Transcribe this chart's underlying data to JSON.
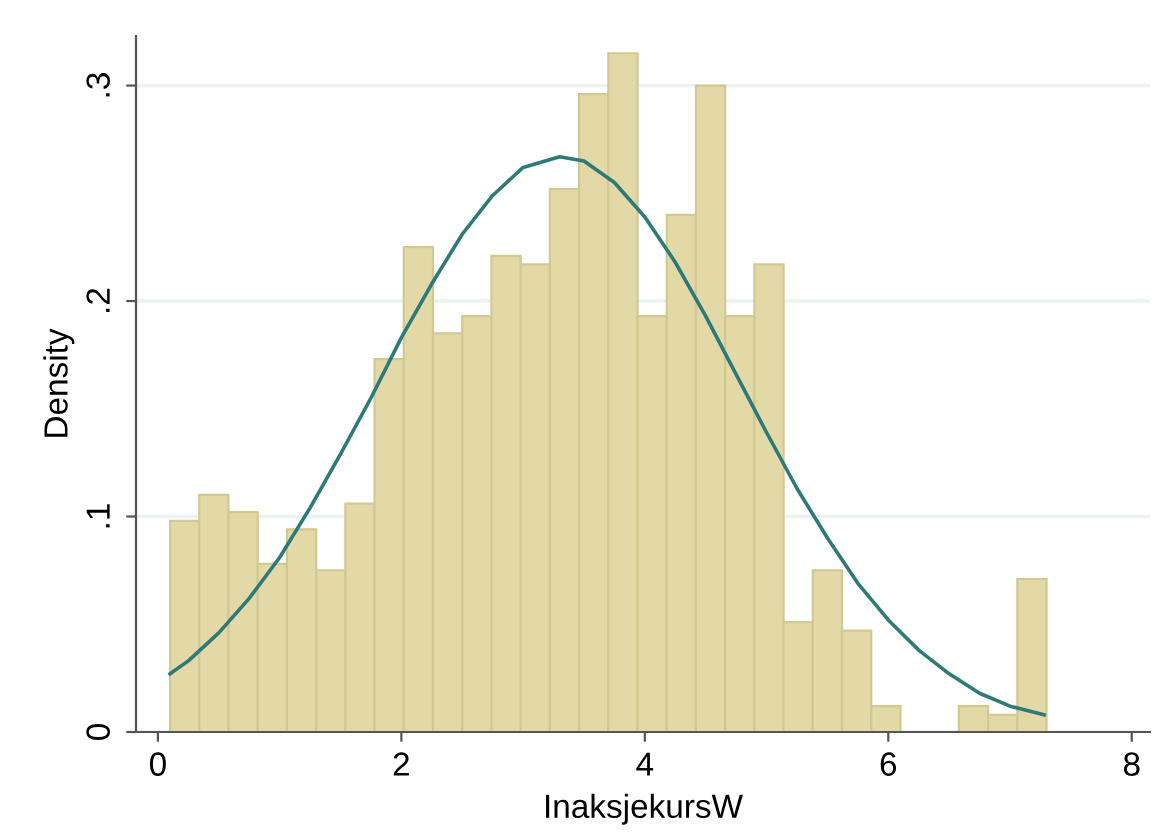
{
  "chart_data": {
    "type": "histogram",
    "xlabel": "InaksjekursW",
    "ylabel": "Density",
    "bins": [
      0.1,
      0.34,
      0.58,
      0.82,
      1.06,
      1.3,
      1.54,
      1.78,
      2.02,
      2.26,
      2.5,
      2.74,
      2.98,
      3.22,
      3.46,
      3.7,
      3.94,
      4.18,
      4.42,
      4.66,
      4.9,
      5.14,
      5.38,
      5.62,
      5.86,
      6.1,
      6.34,
      6.58,
      6.82,
      7.06,
      7.3
    ],
    "values": [
      0.098,
      0.11,
      0.102,
      0.078,
      0.094,
      0.075,
      0.106,
      0.173,
      0.225,
      0.185,
      0.193,
      0.221,
      0.217,
      0.252,
      0.296,
      0.315,
      0.193,
      0.24,
      0.3,
      0.193,
      0.217,
      0.051,
      0.075,
      0.047,
      0.012,
      0,
      0,
      0.012,
      0.008,
      0.071
    ],
    "color": "#e3d9a6",
    "series": [
      {
        "type": "line",
        "color": "#2e7a78",
        "x": [
          0.1,
          0.25,
          0.5,
          0.75,
          1.0,
          1.25,
          1.5,
          1.75,
          2.0,
          2.25,
          2.5,
          2.75,
          3.0,
          3.3,
          3.5,
          3.75,
          4.0,
          4.25,
          4.5,
          4.75,
          5.0,
          5.25,
          5.5,
          5.75,
          6.0,
          6.25,
          6.5,
          6.75,
          7.0,
          7.28
        ],
        "values": [
          0.027,
          0.033,
          0.046,
          0.062,
          0.081,
          0.104,
          0.129,
          0.155,
          0.183,
          0.208,
          0.231,
          0.249,
          0.262,
          0.267,
          0.265,
          0.255,
          0.239,
          0.218,
          0.193,
          0.166,
          0.139,
          0.113,
          0.09,
          0.069,
          0.052,
          0.038,
          0.027,
          0.018,
          0.012,
          0.008
        ]
      }
    ],
    "xlim": [
      -0.18,
      8.15
    ],
    "ylim": [
      0,
      0.323
    ],
    "xticks": [
      0,
      2,
      4,
      6,
      8
    ],
    "yticks": [
      0,
      {
        "value": 0.1,
        "label": ".1"
      },
      {
        "value": 0.2,
        "label": ".2"
      },
      {
        "value": 0.3,
        "label": ".3"
      }
    ],
    "grid": "y"
  }
}
